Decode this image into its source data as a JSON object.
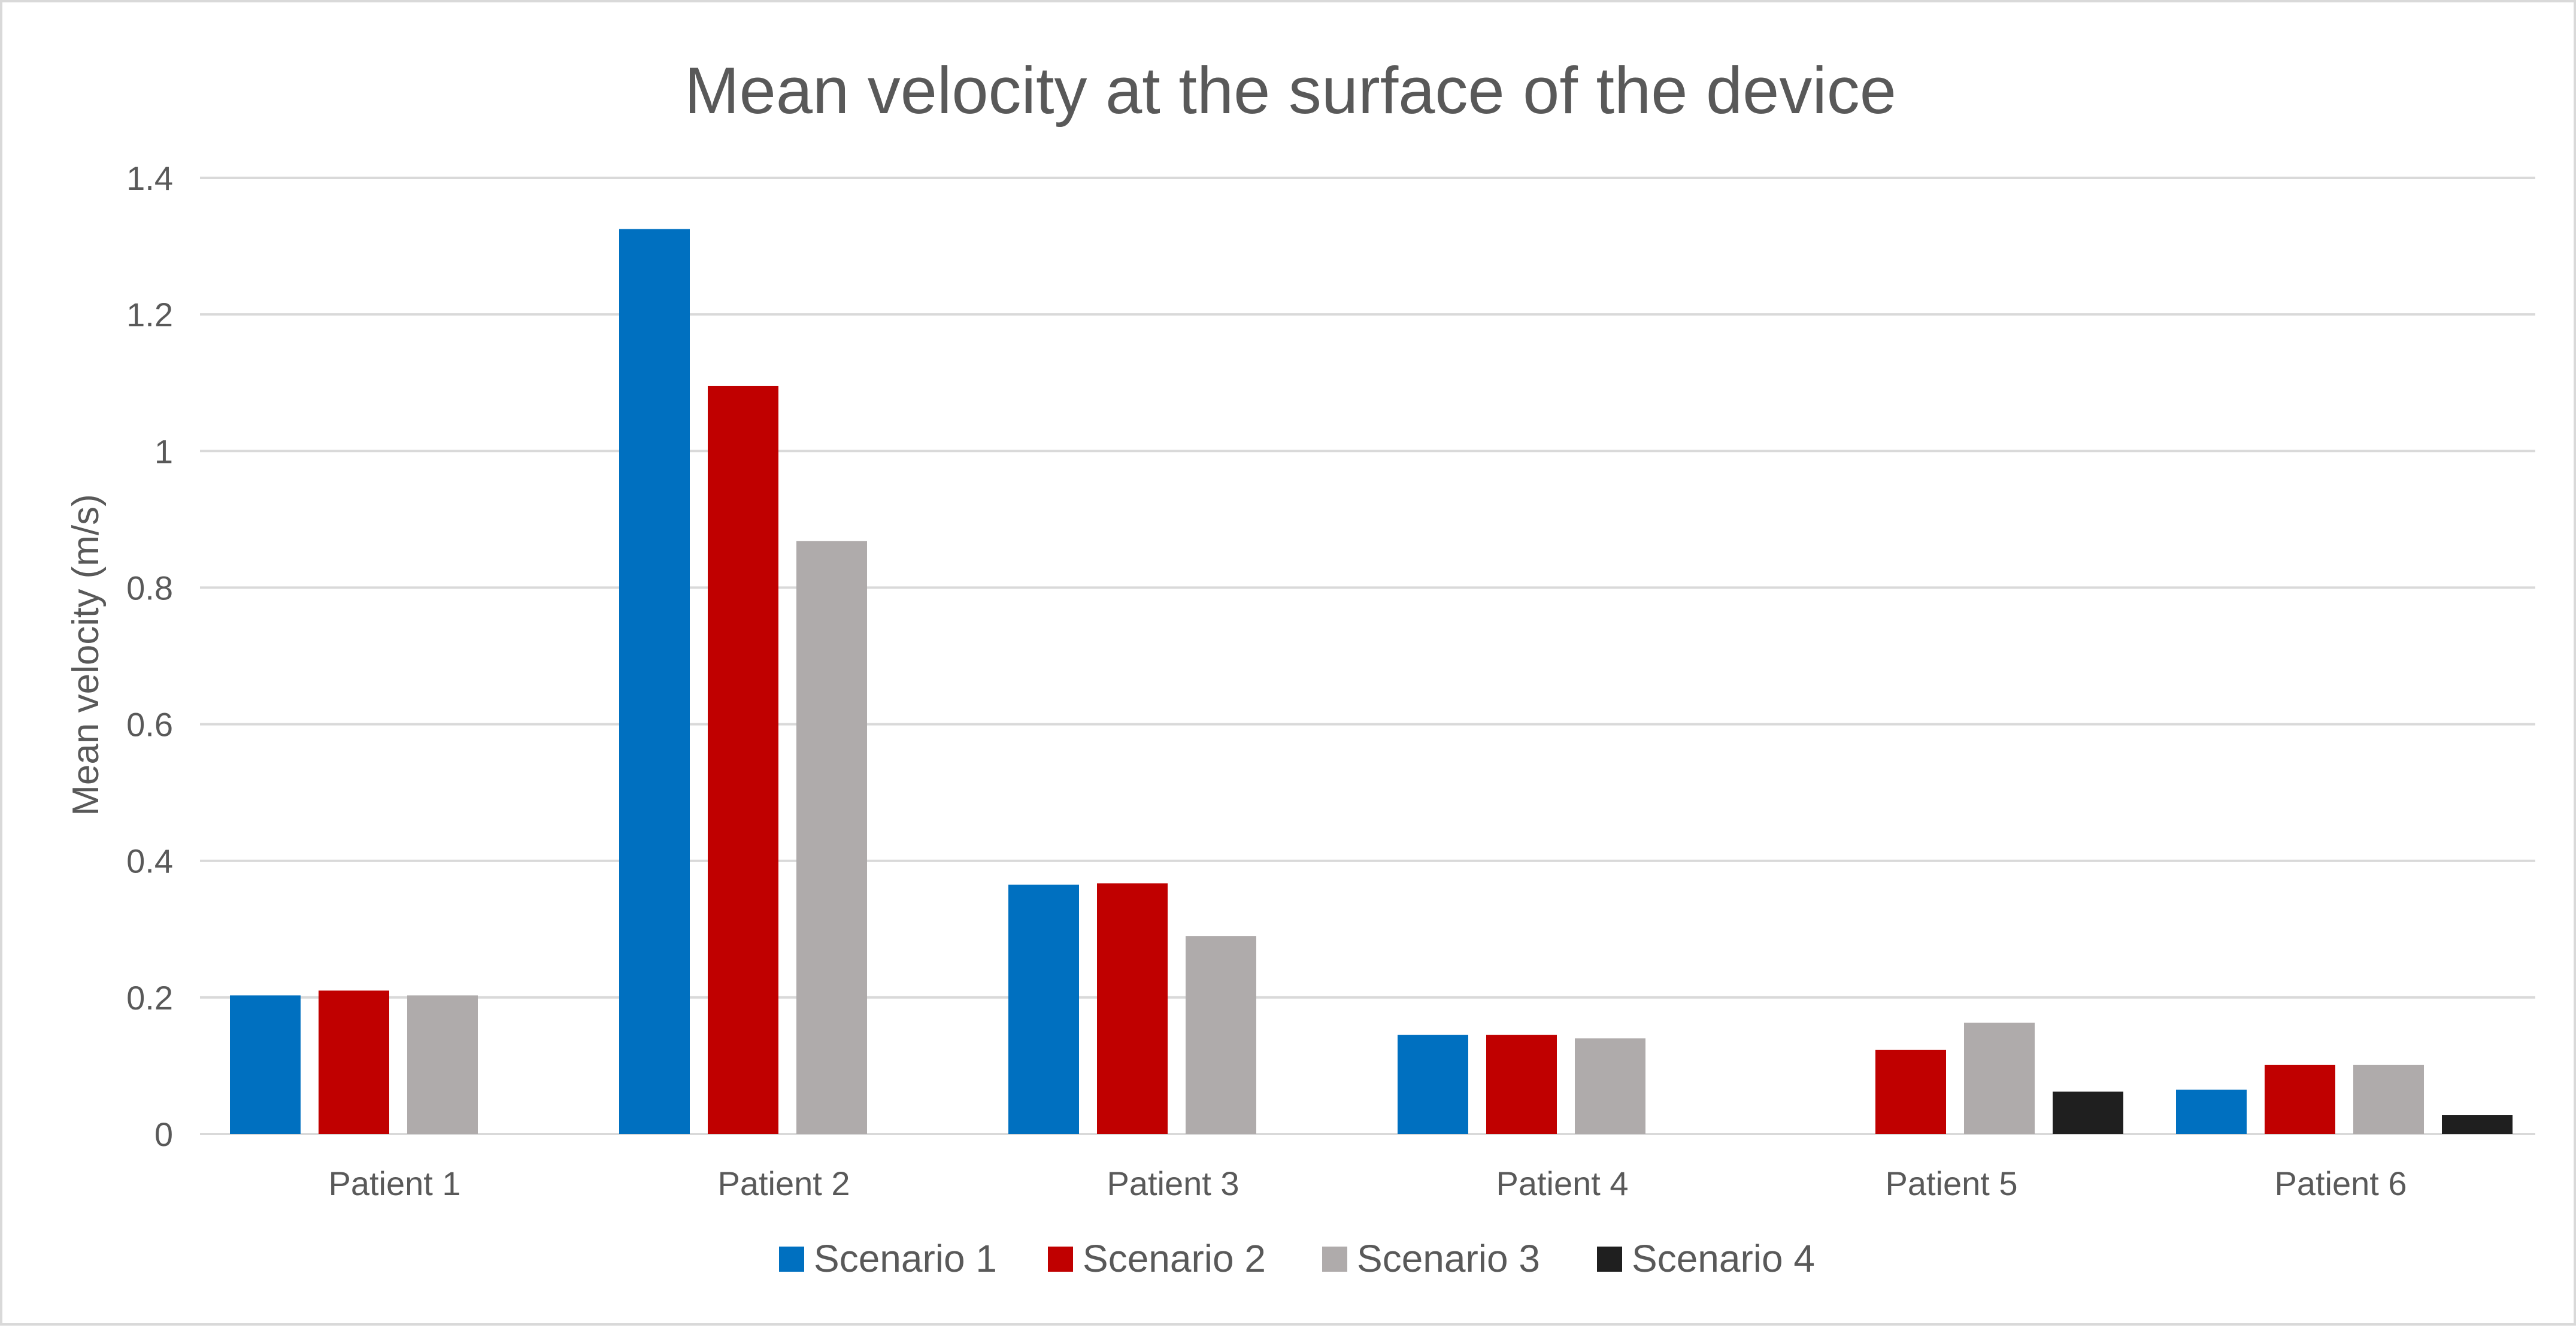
{
  "chart_data": {
    "type": "bar",
    "title": "Mean velocity at the surface of the device",
    "xlabel": "",
    "ylabel": "Mean velocity (m/s)",
    "ylim": [
      0,
      1.4
    ],
    "yticks": [
      0,
      0.2,
      0.4,
      0.6,
      0.8,
      1,
      1.2,
      1.4
    ],
    "ytick_labels": [
      "0",
      "0.2",
      "0.4",
      "0.6",
      "0.8",
      "1",
      "1.2",
      "1.4"
    ],
    "grid": true,
    "legend_position": "bottom",
    "categories": [
      "Patient 1",
      "Patient 2",
      "Patient 3",
      "Patient 4",
      "Patient 5",
      "Patient 6"
    ],
    "series": [
      {
        "name": "Scenario 1",
        "color": "#0070c0",
        "values": [
          0.203,
          1.325,
          0.365,
          0.145,
          null,
          0.065
        ]
      },
      {
        "name": "Scenario 2",
        "color": "#c00000",
        "values": [
          0.21,
          1.095,
          0.367,
          0.145,
          0.123,
          0.101
        ]
      },
      {
        "name": "Scenario 3",
        "color": "#afabab",
        "values": [
          0.203,
          0.868,
          0.29,
          0.14,
          0.163,
          0.101
        ]
      },
      {
        "name": "Scenario 4",
        "color": "#1f1f1f",
        "values": [
          null,
          null,
          null,
          null,
          0.062,
          0.028
        ]
      }
    ]
  }
}
